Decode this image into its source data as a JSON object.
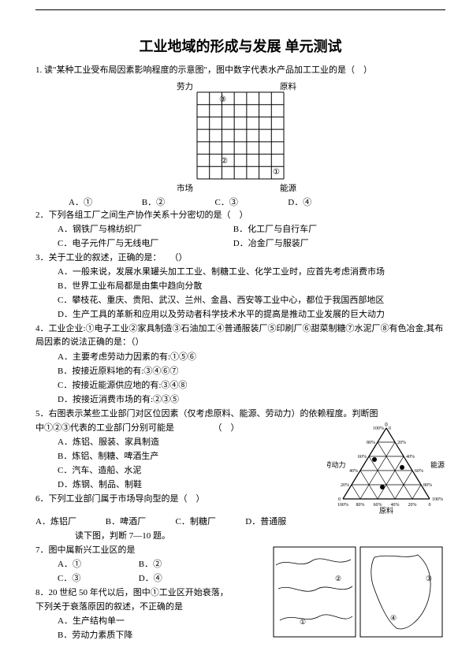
{
  "title": "工业地域的形成与发展 单元测试",
  "q1": {
    "stem": "1. 读\"某种工业受布局因素影响程度的示意图\"，图中数字代表水产品加工工业的是（　）",
    "grid": {
      "labels": {
        "tl": "劳力",
        "tr": "原料",
        "bl": "市场",
        "br": "能源"
      },
      "marks": {
        "n3": "③",
        "n2": "②",
        "n1": "①"
      },
      "size": 110,
      "cells": 7,
      "stroke": "#000000"
    },
    "opts": {
      "A": "A．①",
      "B": "B．②",
      "C": "C．③",
      "D": "D．④"
    }
  },
  "q2": {
    "stem": "2．下列各组工厂之间生产协作关系十分密切的是（　）",
    "A": "A．钢铁厂与棉纺织厂",
    "B": "B．化工厂与自行车厂",
    "C": "C．电子元件厂与无线电厂",
    "D": "D．冶金厂与服装厂"
  },
  "q3": {
    "stem": "3．关于工业的叙述，正确的是：　　（）",
    "A": "A．一般来说，发展水果罐头加工工业、制糖工业、化学工业时，应首先考虑消费市场",
    "B": "B．世界工业布局都是由集中趋向分散",
    "C": "C．攀枝花、重庆、贵阳、武汉、兰州、金昌、西安等工业中心，都位于我国西部地区",
    "D": "D．生产工具的革新和应用以及劳动者科学技术水平的提高是推动工业发展的巨大动力"
  },
  "q4": {
    "stem": "4．工业企业:①电子工业②家具制造③石油加工④普通服装厂⑤印刷厂⑥甜菜制糖⑦水泥厂⑧有色冶金,其布局因素的说法正确的是：（）",
    "A": "A．主要考虑劳动力因素的有:①⑤⑥",
    "B": "B．按接近原料地的有:③④⑥⑦",
    "C": "C．按接近能源供应地的有:③④⑧",
    "D": "D．按接近消费市场的有:②③⑤"
  },
  "q5": {
    "stem1": "5．右图表示某些工业部门对区位因素（仅考虑原料、能源、劳动力）的依赖程度。判断图",
    "stem2": "中①②③代表的工业部门分别可能是　　　　　（　）",
    "A": "A．炼铝、服装、家具制造",
    "B": "B．炼铝、制糖、啤酒生产",
    "C": "C．汽车、造船、水泥",
    "D": "D．炼钢、制品、制鞋",
    "tri": {
      "labels": {
        "left": "劳动力",
        "right": "能源",
        "bottom": "原料"
      },
      "ticks": [
        "0",
        "20%",
        "40%",
        "60%",
        "80%",
        "100%"
      ],
      "colors": {
        "stroke": "#000000",
        "dot": "#000000",
        "bg": "#ffffff"
      }
    }
  },
  "q6": {
    "stem": "6．下列工业部门属于市场导向型的是（　）",
    "A": "A．炼铝厂",
    "B": "B．啤酒厂",
    "C": "C．制糖厂",
    "D": "D．普通服",
    "sub": "　　读下图，判断 7—10 题。"
  },
  "q7": {
    "stem": "7．图中属新兴工业区的是",
    "A": "A．①",
    "B": "B．②",
    "C": "C．③",
    "D": "D．④"
  },
  "q8": {
    "stem1": "8．20 世纪 50 年代以后，图中①工业区开始衰落，",
    "stem2": "下列关于衰落原因的叙述，不正确的是",
    "A": "A．生产结构单一",
    "B": "B．劳动力素质下降"
  },
  "maps": {
    "box_stroke": "#000000",
    "box_fill": "#ffffff",
    "marks": [
      "①",
      "②",
      "③",
      "④"
    ]
  }
}
